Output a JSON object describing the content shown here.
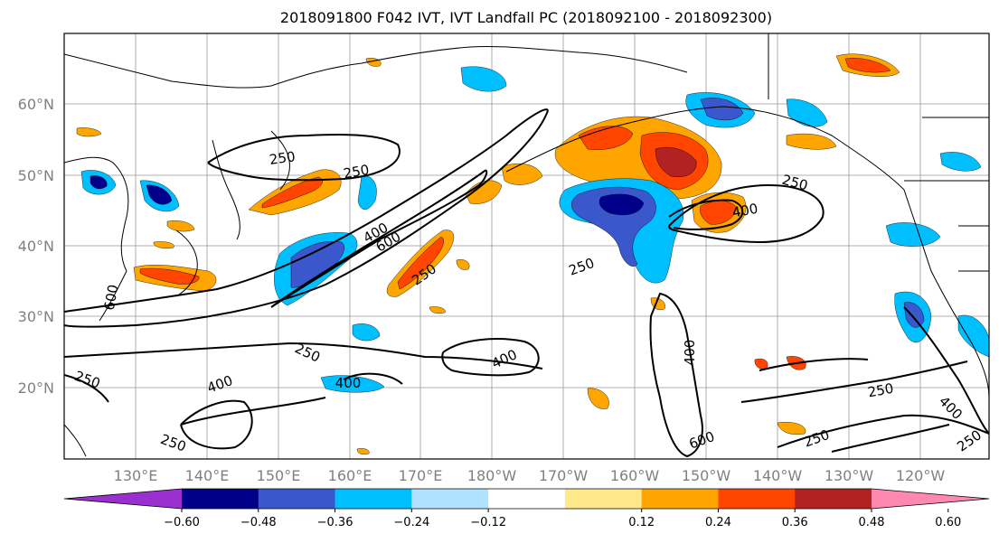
{
  "title": "2018091800 F042 IVT, IVT Landfall PC (2018092100 - 2018092300)",
  "lat_labels": [
    "60°N",
    "50°N",
    "40°N",
    "30°N",
    "20°N"
  ],
  "lon_labels": [
    "130°E",
    "140°E",
    "150°E",
    "160°E",
    "170°E",
    "180°W",
    "170°W",
    "160°W",
    "150°W",
    "140°W",
    "130°W",
    "120°W"
  ],
  "colorbar": {
    "tick_labels": [
      "−0.60",
      "−0.48",
      "−0.36",
      "−0.24",
      "−0.12",
      "0.12",
      "0.24",
      "0.36",
      "0.48",
      "0.60"
    ],
    "colors": [
      "#9b30d0",
      "#00008b",
      "#3a57cc",
      "#00bfff",
      "#b0e2ff",
      "#ffffff",
      "#ffe88a",
      "#ffa500",
      "#ff4500",
      "#b22222",
      "#ff88b0"
    ]
  },
  "contour_labels": [
    "250",
    "250",
    "400",
    "600",
    "250",
    "250",
    "250",
    "400",
    "250",
    "250",
    "400",
    "400",
    "600",
    "250",
    "400",
    "250",
    "250",
    "250",
    "400",
    "400",
    "600"
  ]
}
